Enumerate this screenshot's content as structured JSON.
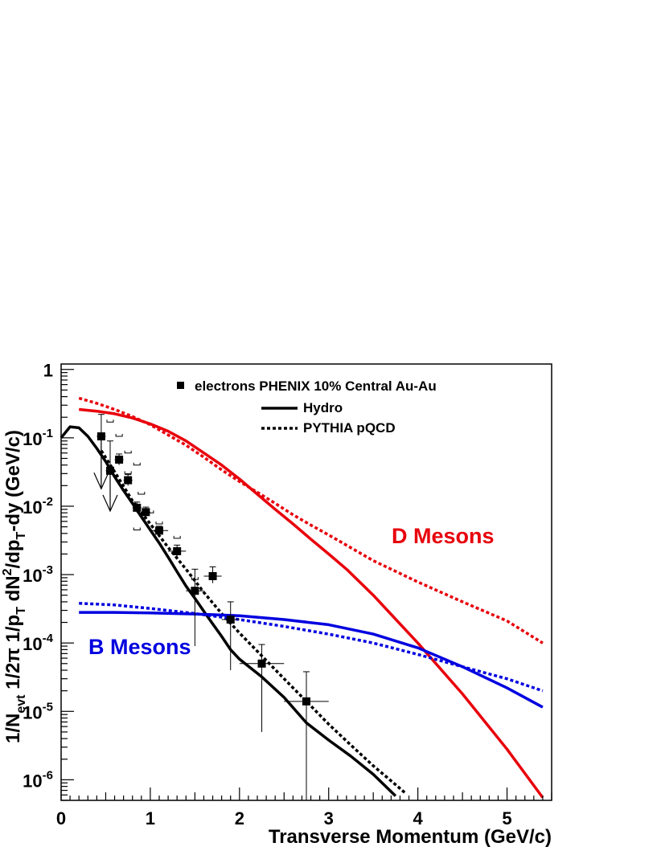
{
  "chart_data": {
    "type": "line",
    "xlabel": "Transverse Momentum (GeV/c)",
    "ylabel_parts": {
      "p1": "1/N",
      "s1": "evt",
      "p2": " 1/2π 1/p",
      "s2": "T",
      "p3": " dN",
      "sup3": "2",
      "p4": "/dp",
      "s4": "T",
      "p5": "-dy (GeV/c)"
    },
    "xlim": [
      0,
      5.5
    ],
    "ylim": [
      5e-07,
      1.2
    ],
    "yscale": "log",
    "xticks": [
      0,
      1,
      2,
      3,
      4,
      5
    ],
    "yticks": [
      {
        "value": 1,
        "base": "1",
        "exp": ""
      },
      {
        "value": 0.1,
        "base": "10",
        "exp": "-1"
      },
      {
        "value": 0.01,
        "base": "10",
        "exp": "-2"
      },
      {
        "value": 0.001,
        "base": "10",
        "exp": "-3"
      },
      {
        "value": 0.0001,
        "base": "10",
        "exp": "-4"
      },
      {
        "value": 1e-05,
        "base": "10",
        "exp": "-5"
      },
      {
        "value": 1e-06,
        "base": "10",
        "exp": "-6"
      }
    ],
    "legend": [
      {
        "label": "electrons PHENIX 10% Central Au-Au",
        "marker": "square"
      },
      {
        "label": "Hydro",
        "style": "solid"
      },
      {
        "label": "PYTHIA pQCD",
        "style": "dashed"
      }
    ],
    "annotations": [
      {
        "text": "D Mesons",
        "color": "#e8000b"
      },
      {
        "text": "B Mesons",
        "color": "#0000e0"
      }
    ],
    "series": [
      {
        "group": "electrons",
        "style": "solid",
        "color": "#000000",
        "points": [
          [
            0.0,
            0.1
          ],
          [
            0.1,
            0.145
          ],
          [
            0.2,
            0.14
          ],
          [
            0.3,
            0.105
          ],
          [
            0.4,
            0.07
          ],
          [
            0.5,
            0.045
          ],
          [
            0.6,
            0.027
          ],
          [
            0.7,
            0.017
          ],
          [
            0.8,
            0.011
          ],
          [
            0.9,
            0.007
          ],
          [
            1.0,
            0.0045
          ],
          [
            1.1,
            0.0029
          ],
          [
            1.2,
            0.0018
          ],
          [
            1.3,
            0.0011
          ],
          [
            1.4,
            0.00068
          ],
          [
            1.5,
            0.00045
          ],
          [
            1.6,
            0.00029
          ],
          [
            1.7,
            0.00019
          ],
          [
            1.8,
            0.000125
          ],
          [
            1.9,
            8e-05
          ],
          [
            2.0,
            5.8e-05
          ],
          [
            2.25,
            3.2e-05
          ],
          [
            2.5,
            1.6e-05
          ],
          [
            2.75,
            6.8e-06
          ],
          [
            3.0,
            3.8e-06
          ],
          [
            3.25,
            2.2e-06
          ],
          [
            3.5,
            1.2e-06
          ],
          [
            3.75,
            5.8e-07
          ]
        ]
      },
      {
        "group": "electrons",
        "style": "dashed",
        "color": "#000000",
        "points": [
          [
            0.45,
            0.065
          ],
          [
            0.6,
            0.032
          ],
          [
            0.8,
            0.012
          ],
          [
            1.0,
            0.0055
          ],
          [
            1.2,
            0.0025
          ],
          [
            1.4,
            0.0012
          ],
          [
            1.6,
            0.00055
          ],
          [
            1.8,
            0.00027
          ],
          [
            2.0,
            0.00014
          ],
          [
            2.25,
            6.5e-05
          ],
          [
            2.5,
            3e-05
          ],
          [
            2.75,
            1.4e-05
          ],
          [
            3.0,
            6.5e-06
          ],
          [
            3.25,
            3.2e-06
          ],
          [
            3.5,
            1.6e-06
          ],
          [
            3.75,
            8.5e-07
          ],
          [
            3.87,
            6.2e-07
          ]
        ]
      },
      {
        "group": "D",
        "style": "solid",
        "color": "#e8000b",
        "points": [
          [
            0.2,
            0.26
          ],
          [
            0.4,
            0.245
          ],
          [
            0.6,
            0.225
          ],
          [
            0.8,
            0.195
          ],
          [
            1.0,
            0.16
          ],
          [
            1.2,
            0.125
          ],
          [
            1.4,
            0.09
          ],
          [
            1.6,
            0.06
          ],
          [
            1.8,
            0.04
          ],
          [
            2.0,
            0.025
          ],
          [
            2.2,
            0.015
          ],
          [
            2.4,
            0.009
          ],
          [
            2.6,
            0.0055
          ],
          [
            2.8,
            0.0033
          ],
          [
            3.0,
            0.002
          ],
          [
            3.2,
            0.0012
          ],
          [
            3.5,
            0.0005
          ],
          [
            4.0,
            0.0001
          ],
          [
            4.5,
            1.8e-05
          ],
          [
            5.0,
            2.8e-06
          ],
          [
            5.4,
            5.5e-07
          ]
        ]
      },
      {
        "group": "D",
        "style": "dashed",
        "color": "#e8000b",
        "points": [
          [
            0.2,
            0.38
          ],
          [
            0.4,
            0.32
          ],
          [
            0.6,
            0.26
          ],
          [
            0.8,
            0.205
          ],
          [
            1.0,
            0.155
          ],
          [
            1.2,
            0.11
          ],
          [
            1.4,
            0.078
          ],
          [
            1.6,
            0.052
          ],
          [
            1.8,
            0.034
          ],
          [
            2.0,
            0.023
          ],
          [
            2.2,
            0.016
          ],
          [
            2.4,
            0.011
          ],
          [
            2.6,
            0.0075
          ],
          [
            2.8,
            0.0053
          ],
          [
            3.0,
            0.0038
          ],
          [
            3.5,
            0.0016
          ],
          [
            4.0,
            0.00078
          ],
          [
            4.5,
            0.0004
          ],
          [
            5.0,
            0.00021
          ],
          [
            5.4,
            0.0001
          ]
        ]
      },
      {
        "group": "B",
        "style": "solid",
        "color": "#0000e0",
        "points": [
          [
            0.2,
            0.00028
          ],
          [
            0.6,
            0.00028
          ],
          [
            1.0,
            0.000275
          ],
          [
            1.5,
            0.000265
          ],
          [
            2.0,
            0.00025
          ],
          [
            2.5,
            0.00022
          ],
          [
            3.0,
            0.000185
          ],
          [
            3.5,
            0.000135
          ],
          [
            4.0,
            8.5e-05
          ],
          [
            4.5,
            4.5e-05
          ],
          [
            5.0,
            2.2e-05
          ],
          [
            5.4,
            1.15e-05
          ]
        ]
      },
      {
        "group": "B",
        "style": "dashed",
        "color": "#0000e0",
        "points": [
          [
            0.2,
            0.00038
          ],
          [
            0.6,
            0.00036
          ],
          [
            1.0,
            0.00032
          ],
          [
            1.5,
            0.00027
          ],
          [
            2.0,
            0.00022
          ],
          [
            2.5,
            0.000175
          ],
          [
            3.0,
            0.000135
          ],
          [
            3.5,
            0.0001
          ],
          [
            4.0,
            6.8e-05
          ],
          [
            4.5,
            4.5e-05
          ],
          [
            5.0,
            3e-05
          ],
          [
            5.4,
            2e-05
          ]
        ]
      }
    ],
    "data_points": [
      {
        "x": 0.45,
        "y": 0.105,
        "xerr": 0.05,
        "ylo": 0.02,
        "yhi": 0.22
      },
      {
        "x": 0.55,
        "y": 0.033,
        "xerr": 0.05,
        "ylo": 0.012,
        "yhi": 0.09
      },
      {
        "x": 0.65,
        "y": 0.048,
        "xerr": 0.05,
        "ylo": 0.04,
        "yhi": 0.058
      },
      {
        "x": 0.75,
        "y": 0.024,
        "xerr": 0.05,
        "ylo": 0.02,
        "yhi": 0.029
      },
      {
        "x": 0.85,
        "y": 0.0095,
        "xerr": 0.05,
        "ylo": 0.008,
        "yhi": 0.0115
      },
      {
        "x": 0.95,
        "y": 0.0082,
        "xerr": 0.05,
        "ylo": 0.007,
        "yhi": 0.0097
      },
      {
        "x": 1.1,
        "y": 0.0044,
        "xerr": 0.1,
        "ylo": 0.0038,
        "yhi": 0.0051
      },
      {
        "x": 1.3,
        "y": 0.0022,
        "xerr": 0.1,
        "ylo": 0.0018,
        "yhi": 0.0027
      },
      {
        "x": 1.5,
        "y": 0.00058,
        "xerr": 0.1,
        "ylo": 9e-05,
        "yhi": 0.0012
      },
      {
        "x": 1.7,
        "y": 0.00095,
        "xerr": 0.1,
        "ylo": 0.00075,
        "yhi": 0.0013
      },
      {
        "x": 1.9,
        "y": 0.00022,
        "xerr": 0.1,
        "ylo": 4e-05,
        "yhi": 0.0004
      },
      {
        "x": 2.25,
        "y": 5e-05,
        "xerr": 0.25,
        "ylo": 5e-06,
        "yhi": 9.5e-05
      },
      {
        "x": 2.75,
        "y": 1.4e-05,
        "xerr": 0.25,
        "ylo": 5e-07,
        "yhi": 3.8e-05
      }
    ],
    "upper_limits": [
      {
        "x": 0.45,
        "y": 0.105,
        "to": 0.018
      },
      {
        "x": 0.55,
        "y": 0.033,
        "to": 0.0085
      }
    ],
    "sys_brackets": [
      {
        "x": 0.55,
        "y": 0.17
      },
      {
        "x": 0.65,
        "y": 0.105
      },
      {
        "x": 0.75,
        "y": 0.06
      },
      {
        "x": 0.85,
        "y": 0.04
      },
      {
        "x": 0.75,
        "y": 0.03
      },
      {
        "x": 0.9,
        "y": 0.015
      },
      {
        "x": 1.0,
        "y": 0.008
      },
      {
        "x": 1.1,
        "y": 0.0055
      },
      {
        "x": 0.85,
        "y": 0.0045
      },
      {
        "x": 1.3,
        "y": 0.0034
      },
      {
        "x": 1.5,
        "y": 0.00085
      }
    ]
  }
}
